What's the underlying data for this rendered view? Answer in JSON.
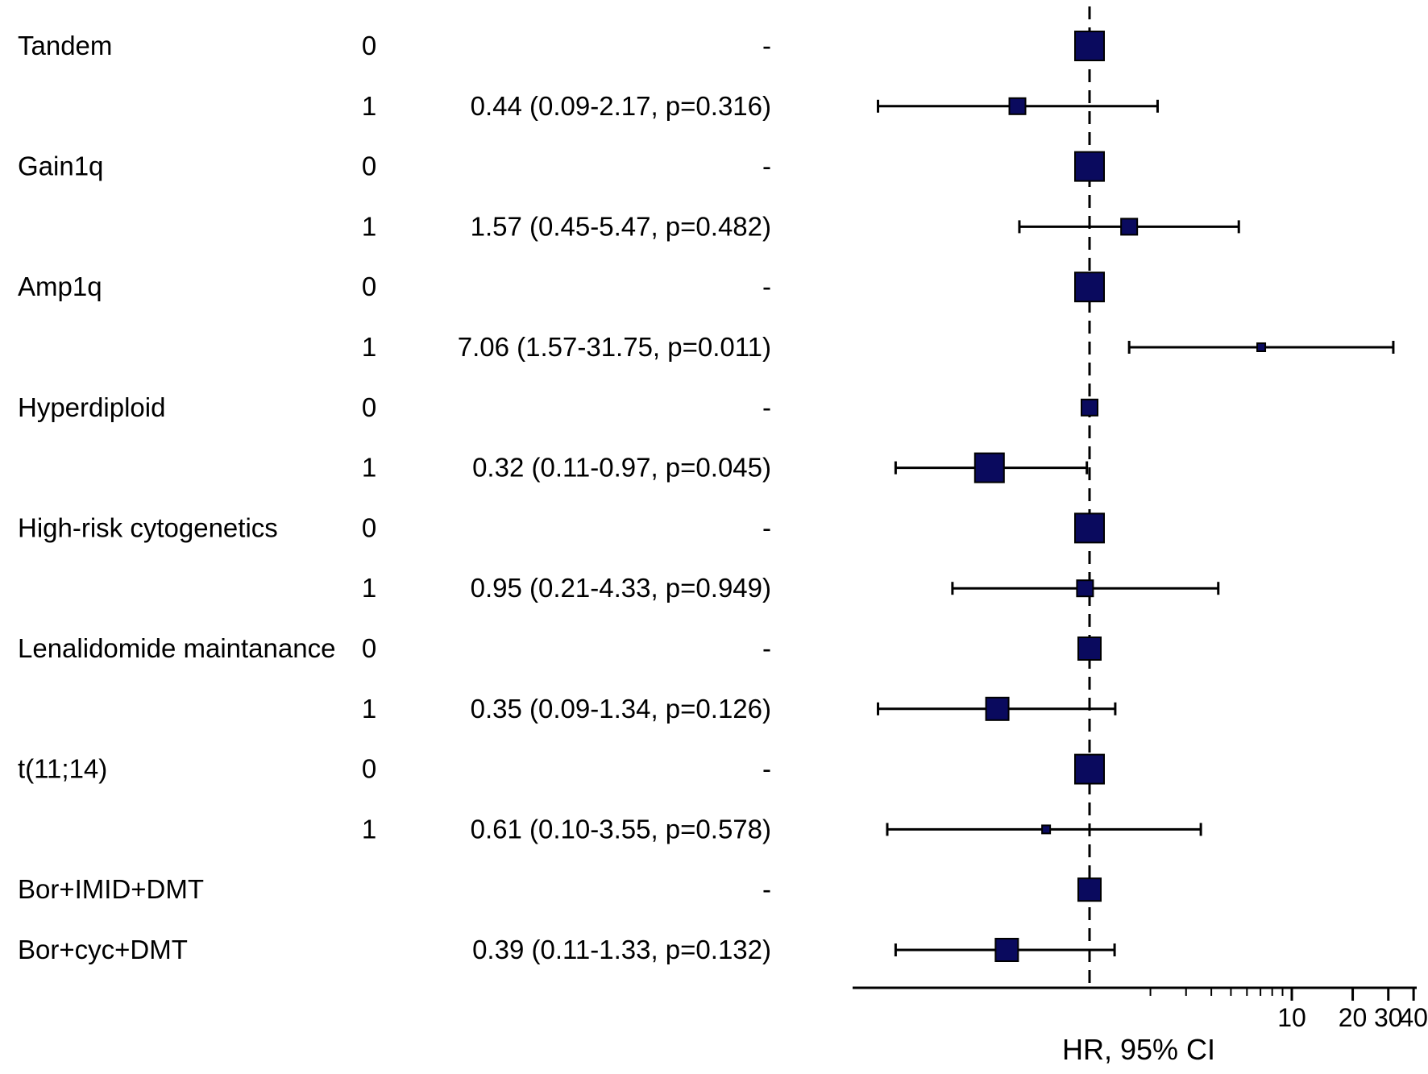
{
  "chart_data": {
    "type": "forest",
    "xlabel": "HR, 95% CI",
    "x_scale": "log",
    "xlim": [
      0.06,
      42
    ],
    "reference_line": 1,
    "ticks": [
      {
        "value": 10,
        "label": "10"
      },
      {
        "value": 20,
        "label": "20"
      },
      {
        "value": 30,
        "label": "30"
      },
      {
        "value": 40,
        "label": "40"
      }
    ],
    "minor_ticks": [
      2,
      3,
      4,
      5,
      6,
      7,
      8,
      9
    ],
    "rows": [
      {
        "variable": "Tandem",
        "level": "0",
        "text": "-",
        "hr": 1,
        "lo": null,
        "hi": null,
        "marker": "large"
      },
      {
        "variable": "",
        "level": "1",
        "text": "0.44 (0.09-2.17, p=0.316)",
        "hr": 0.44,
        "lo": 0.09,
        "hi": 2.17,
        "marker": "small"
      },
      {
        "variable": "Gain1q",
        "level": "0",
        "text": "-",
        "hr": 1,
        "lo": null,
        "hi": null,
        "marker": "large"
      },
      {
        "variable": "",
        "level": "1",
        "text": "1.57 (0.45-5.47, p=0.482)",
        "hr": 1.57,
        "lo": 0.45,
        "hi": 5.47,
        "marker": "small"
      },
      {
        "variable": "Amp1q",
        "level": "0",
        "text": "-",
        "hr": 1,
        "lo": null,
        "hi": null,
        "marker": "large"
      },
      {
        "variable": "",
        "level": "1",
        "text": "7.06 (1.57-31.75, p=0.011)",
        "hr": 7.06,
        "lo": 1.57,
        "hi": 31.75,
        "marker": "tiny"
      },
      {
        "variable": "Hyperdiploid",
        "level": "0",
        "text": "-",
        "hr": 1,
        "lo": null,
        "hi": null,
        "marker": "small"
      },
      {
        "variable": "",
        "level": "1",
        "text": "0.32 (0.11-0.97, p=0.045)",
        "hr": 0.32,
        "lo": 0.11,
        "hi": 0.97,
        "marker": "large"
      },
      {
        "variable": "High-risk cytogenetics",
        "level": "0",
        "text": "-",
        "hr": 1,
        "lo": null,
        "hi": null,
        "marker": "large"
      },
      {
        "variable": "",
        "level": "1",
        "text": "0.95 (0.21-4.33, p=0.949)",
        "hr": 0.95,
        "lo": 0.21,
        "hi": 4.33,
        "marker": "small"
      },
      {
        "variable": "Lenalidomide maintanance",
        "level": "0",
        "text": "-",
        "hr": 1,
        "lo": null,
        "hi": null,
        "marker": "medium"
      },
      {
        "variable": "",
        "level": "1",
        "text": "0.35 (0.09-1.34, p=0.126)",
        "hr": 0.35,
        "lo": 0.09,
        "hi": 1.34,
        "marker": "medium"
      },
      {
        "variable": "t(11;14)",
        "level": "0",
        "text": "-",
        "hr": 1,
        "lo": null,
        "hi": null,
        "marker": "large"
      },
      {
        "variable": "",
        "level": "1",
        "text": "0.61 (0.10-3.55, p=0.578)",
        "hr": 0.61,
        "lo": 0.1,
        "hi": 3.55,
        "marker": "tiny"
      },
      {
        "variable": "Bor+IMID+DMT",
        "level": "",
        "text": "-",
        "hr": 1,
        "lo": null,
        "hi": null,
        "marker": "medium"
      },
      {
        "variable": "Bor+cyc+DMT",
        "level": "",
        "text": "0.39 (0.11-1.33, p=0.132)",
        "hr": 0.39,
        "lo": 0.11,
        "hi": 1.33,
        "marker": "medium"
      }
    ],
    "colors": {
      "marker_fill": "#0a0a5e",
      "marker_stroke": "#000000",
      "line": "#000000"
    }
  }
}
